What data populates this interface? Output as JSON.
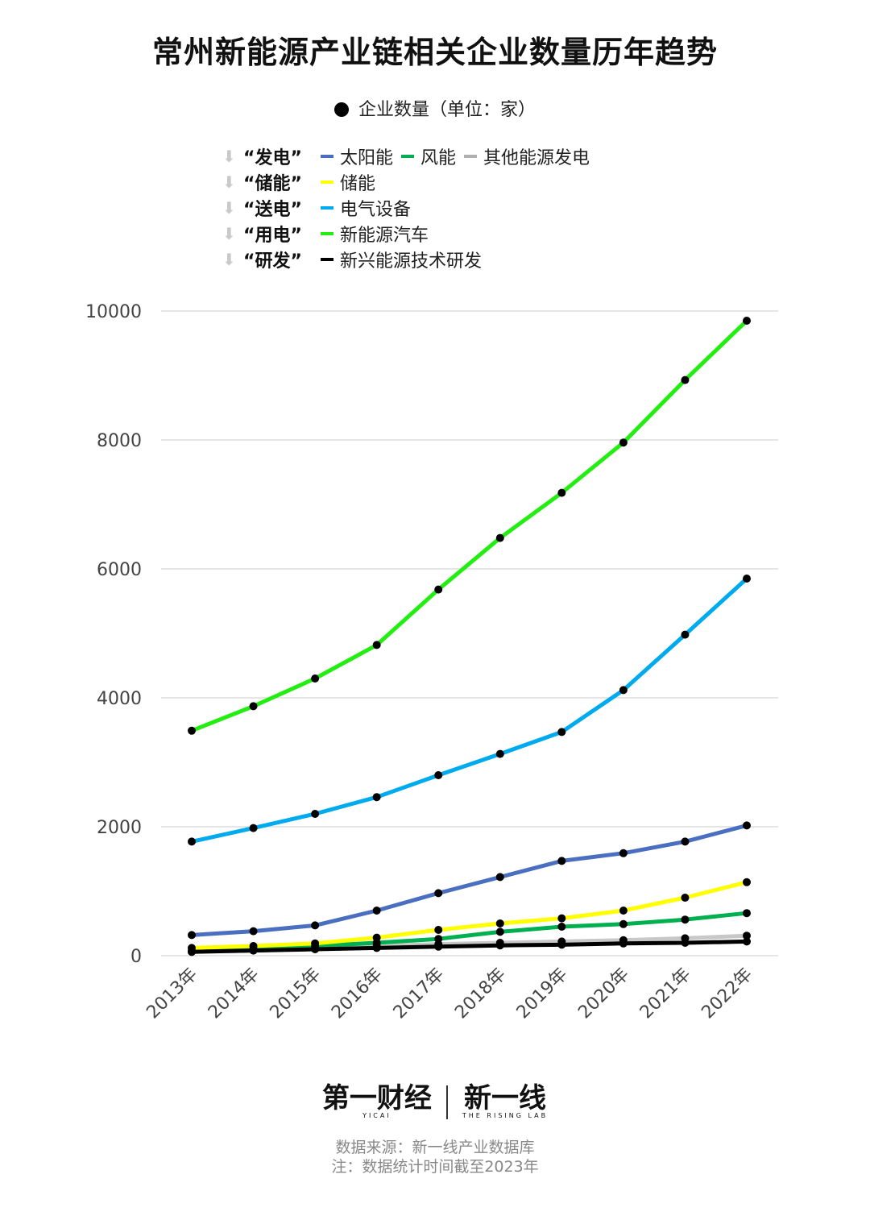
{
  "title": "常州新能源产业链相关企业数量历年趋势",
  "unit_legend": "企业数量（单位：家）",
  "legend_groups": [
    {
      "group": "“发电”",
      "items": [
        {
          "label": "太阳能",
          "color": "#4a6fc0"
        },
        {
          "label": "风能",
          "color": "#00b050"
        },
        {
          "label": "其他能源发电",
          "color": "#b0b0b0"
        }
      ]
    },
    {
      "group": "“储能”",
      "items": [
        {
          "label": "储能",
          "color": "#ffff00"
        }
      ]
    },
    {
      "group": "“送电”",
      "items": [
        {
          "label": "电气设备",
          "color": "#00aaee"
        }
      ]
    },
    {
      "group": "“用电”",
      "items": [
        {
          "label": "新能源汽车",
          "color": "#22ee11"
        }
      ]
    },
    {
      "group": "“研发”",
      "items": [
        {
          "label": "新兴能源技术研发",
          "color": "#000000"
        }
      ]
    }
  ],
  "chart_data": {
    "type": "line",
    "x": [
      "2013年",
      "2014年",
      "2015年",
      "2016年",
      "2017年",
      "2018年",
      "2019年",
      "2020年",
      "2021年",
      "2022年"
    ],
    "ylim": [
      0,
      10000
    ],
    "yticks": [
      "0",
      "2000",
      "4000",
      "6000",
      "8000",
      "10000"
    ],
    "grid": true,
    "series": [
      {
        "name": "其他能源发电",
        "color": "#c8c8c8",
        "values": [
          60,
          80,
          110,
          150,
          180,
          200,
          220,
          240,
          270,
          310
        ]
      },
      {
        "name": "风能",
        "color": "#00b050",
        "values": [
          80,
          110,
          150,
          200,
          260,
          370,
          450,
          490,
          560,
          660
        ]
      },
      {
        "name": "储能",
        "color": "#ffff00",
        "values": [
          120,
          150,
          190,
          280,
          400,
          500,
          580,
          700,
          900,
          1140
        ]
      },
      {
        "name": "太阳能",
        "color": "#4a6fc0",
        "values": [
          320,
          380,
          470,
          700,
          970,
          1220,
          1470,
          1590,
          1770,
          2020
        ]
      },
      {
        "name": "电气设备",
        "color": "#00aaee",
        "values": [
          1770,
          1980,
          2200,
          2460,
          2800,
          3130,
          3470,
          4120,
          4980,
          5850
        ]
      },
      {
        "name": "新能源汽车",
        "color": "#22ee11",
        "values": [
          3490,
          3870,
          4300,
          4820,
          5680,
          6480,
          7180,
          7960,
          8930,
          9850
        ]
      },
      {
        "name": "新兴能源技术研发",
        "color": "#000000",
        "values": [
          60,
          80,
          100,
          120,
          140,
          160,
          170,
          190,
          200,
          220
        ]
      }
    ]
  },
  "footer": {
    "logo_left": "第一财经",
    "logo_left_sub": "YICAI",
    "logo_right": "新一线",
    "logo_right_sub": "THE RISING LAB",
    "source": "数据来源：新一线产业数据库",
    "note": "注：数据统计时间截至2023年"
  }
}
